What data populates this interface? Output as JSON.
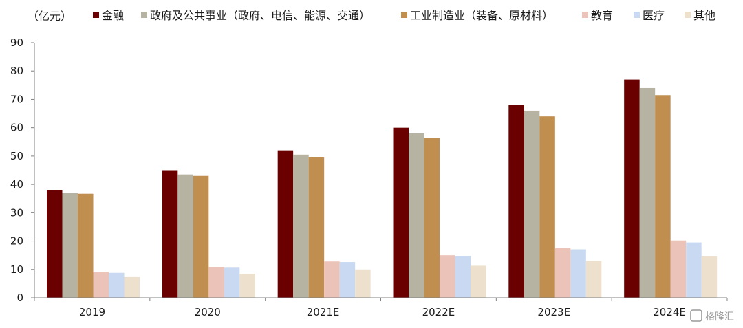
{
  "chart_data": {
    "type": "bar",
    "unit_label": "（亿元）",
    "categories": [
      "2019",
      "2020",
      "2021E",
      "2022E",
      "2023E",
      "2024E"
    ],
    "series": [
      {
        "name": "金融",
        "color": "#6b0000",
        "values": [
          38,
          45,
          52,
          60,
          68,
          77
        ]
      },
      {
        "name": "政府及公共事业（政府、电信、能源、交通）",
        "color": "#b6b3a2",
        "values": [
          37,
          43.5,
          50.5,
          58,
          66,
          74
        ]
      },
      {
        "name": "工业制造业（装备、原材料）",
        "color": "#c08e4e",
        "values": [
          36.7,
          43,
          49.5,
          56.5,
          64,
          71.5
        ]
      },
      {
        "name": "教育",
        "color": "#ecc3b9",
        "values": [
          9,
          10.8,
          12.8,
          15,
          17.5,
          20.2
        ]
      },
      {
        "name": "医疗",
        "color": "#c8d9f1",
        "values": [
          8.8,
          10.6,
          12.6,
          14.7,
          17.1,
          19.5
        ]
      },
      {
        "name": "其他",
        "color": "#ede1ce",
        "values": [
          7.3,
          8.5,
          10,
          11.3,
          13,
          14.6
        ]
      }
    ],
    "yticks": [
      0,
      10,
      20,
      30,
      40,
      50,
      60,
      70,
      80,
      90
    ],
    "ylim": [
      0,
      90
    ],
    "legend_position": "top",
    "grid": false
  },
  "watermark": {
    "text": "格隆汇",
    "icon": "gelonghui-logo-icon"
  }
}
